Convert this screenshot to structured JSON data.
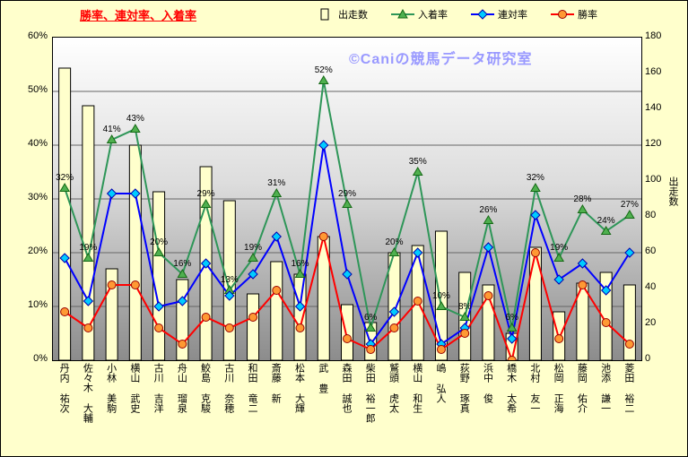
{
  "page": {
    "title": "勝率、連対率、入着率",
    "watermark": "©Caniの競馬データ研究室"
  },
  "legend": {
    "items": [
      {
        "label": "出走数",
        "type": "bar"
      },
      {
        "label": "入着率",
        "type": "triangle-line"
      },
      {
        "label": "連対率",
        "type": "diamond-line"
      },
      {
        "label": "勝率",
        "type": "circle-line"
      }
    ]
  },
  "chart_data": {
    "type": "combo",
    "title": "勝率、連対率、入着率",
    "categories": [
      "丹内 祐次",
      "佐々木 大輔",
      "小林 美駒",
      "横山 武史",
      "古川 吉洋",
      "舟山 瑠泉",
      "鮫島 克駿",
      "古川 奈穂",
      "和田 竜二",
      "斎藤 新",
      "松本 大輝",
      "武 豊",
      "森田 誠也",
      "柴田 裕一郎",
      "鷲頭 虎太",
      "横山 和生",
      "嶋 弘人",
      "荻野 琢真",
      "浜中 俊",
      "橋木 太希",
      "北村 友一",
      "松岡 正海",
      "藤岡 佑介",
      "池添 謙一",
      "菱田 裕二"
    ],
    "series": [
      {
        "name": "出走数",
        "type": "bar",
        "axis": "right",
        "values": [
          163,
          142,
          51,
          120,
          94,
          45,
          108,
          89,
          37,
          55,
          48,
          69,
          31,
          21,
          60,
          64,
          72,
          49,
          42,
          15,
          63,
          27,
          43,
          49,
          42
        ]
      },
      {
        "name": "入着率",
        "type": "line",
        "marker": "triangle",
        "axis": "left",
        "values": [
          32,
          19,
          41,
          43,
          20,
          16,
          29,
          13,
          19,
          31,
          16,
          52,
          29,
          6,
          20,
          35,
          10,
          8,
          26,
          6,
          32,
          19,
          28,
          24,
          27
        ],
        "labels": [
          "32%",
          "19%",
          "41%",
          "43%",
          "20%",
          "16%",
          "29%",
          "13%",
          "19%",
          "31%",
          "16%",
          "52%",
          "29%",
          "6%",
          "20%",
          "35%",
          "10%",
          "8%",
          "26%",
          "6%",
          "32%",
          "19%",
          "28%",
          "24%",
          "27%"
        ]
      },
      {
        "name": "連対率",
        "type": "line",
        "marker": "diamond",
        "axis": "left",
        "values": [
          19,
          11,
          31,
          31,
          10,
          11,
          18,
          12,
          16,
          23,
          10,
          40,
          16,
          3,
          9,
          20,
          3,
          6,
          21,
          4,
          27,
          15,
          18,
          13,
          20
        ]
      },
      {
        "name": "勝率",
        "type": "line",
        "marker": "circle",
        "axis": "left",
        "values": [
          9,
          6,
          14,
          14,
          6,
          3,
          8,
          6,
          8,
          13,
          6,
          23,
          4,
          2,
          6,
          11,
          2,
          5,
          12,
          0,
          20,
          4,
          14,
          7,
          3
        ]
      }
    ],
    "left_axis": {
      "min": 0,
      "max": 60,
      "step": 10,
      "ticks": [
        "0%",
        "10%",
        "20%",
        "30%",
        "40%",
        "50%",
        "60%"
      ]
    },
    "right_axis": {
      "min": 0,
      "max": 180,
      "step": 20,
      "title": "出走数",
      "ticks": [
        0,
        20,
        40,
        60,
        80,
        100,
        120,
        140,
        160,
        180
      ]
    },
    "legend_position": "top",
    "grid": "horizontal",
    "colors": {
      "canvas_bg": "#FFFFCC",
      "title": "#FF0000",
      "watermark": "#9999FF",
      "bar_fill": "#FFFFCC",
      "bar_stroke": "#000000",
      "green_line": "#2E9658",
      "green_marker": "#4FB04F",
      "green_marker_stroke": "#156915",
      "blue_line": "#0000FF",
      "blue_marker": "#00CCFF",
      "blue_marker_stroke": "#0000B0",
      "red_line": "#FF0000",
      "red_marker": "#FF9933",
      "red_marker_stroke": "#990000",
      "grid": "#666666"
    }
  }
}
